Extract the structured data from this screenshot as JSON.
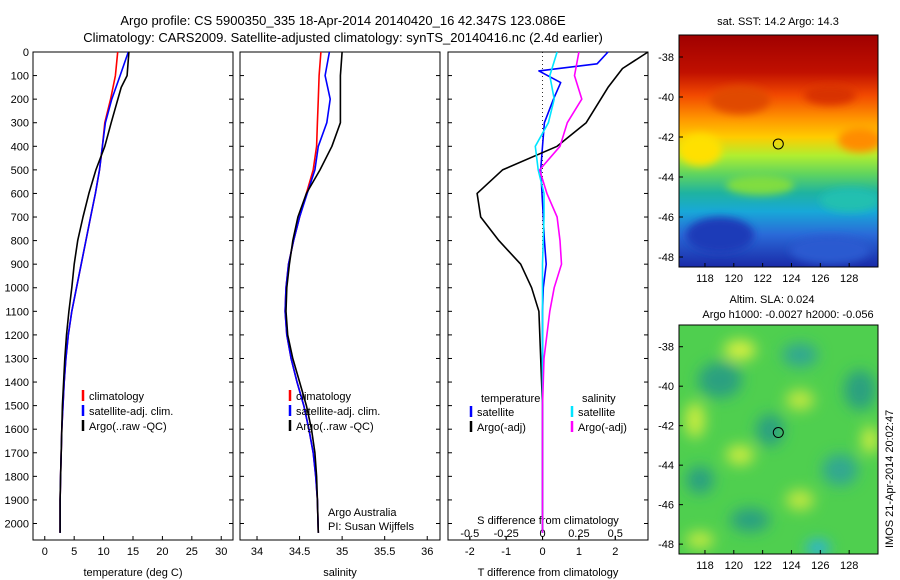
{
  "header": {
    "line1": "Argo profile: CS 5900350_335 18-Apr-2014 20140420_16 42.347S 123.086E",
    "line2": "Climatology: CARS2009. Satellite-adjusted climatology: synTS_20140416.nc (2.4d earlier)"
  },
  "colors": {
    "climatology": "#ff0000",
    "satellite": "#0000ff",
    "argo": "#000000",
    "salinity_satellite": "#00e5ff",
    "salinity_argo": "#ff00ff"
  },
  "credits": {
    "org": "Argo Australia",
    "pi": "PI: Susan Wijffels",
    "stamp": "IMOS 21-Apr-2014 20:02:47"
  },
  "maps": {
    "sst": {
      "title": "sat. SST: 14.2  Argo: 14.3",
      "yticks": [
        "-38",
        "-40",
        "-42",
        "-44",
        "-46",
        "-48"
      ],
      "xticks": [
        "118",
        "120",
        "122",
        "124",
        "126",
        "128"
      ],
      "marker": {
        "lon": 123.086,
        "lat": -42.347
      }
    },
    "sla": {
      "title1": "Altim. SLA: 0.024",
      "title2": "Argo h1000: -0.0027 h2000: -0.056",
      "yticks": [
        "-38",
        "-40",
        "-42",
        "-44",
        "-46",
        "-48"
      ],
      "xticks": [
        "118",
        "120",
        "122",
        "124",
        "126",
        "128"
      ],
      "marker": {
        "lon": 123.086,
        "lat": -42.347
      }
    }
  },
  "chart_data": [
    {
      "type": "line",
      "id": "temperature",
      "xlabel": "temperature (deg C)",
      "ylabel": "",
      "xlim": [
        -2,
        32
      ],
      "ylim": [
        2070,
        0
      ],
      "xticks": [
        0,
        5,
        10,
        15,
        20,
        25,
        30
      ],
      "yticks": [
        0,
        100,
        200,
        300,
        400,
        500,
        600,
        700,
        800,
        900,
        1000,
        1100,
        1200,
        1300,
        1400,
        1500,
        1600,
        1700,
        1800,
        1900,
        2000
      ],
      "legend": [
        "climatology",
        "satellite-adj. clim.",
        "Argo(..raw -QC)"
      ],
      "series": [
        {
          "name": "climatology",
          "color": "#ff0000",
          "x": [
            12.4,
            12.0,
            11.2,
            10.2,
            9.8,
            9.3,
            8.6,
            7.8,
            7.0,
            6.2,
            5.4,
            4.6,
            4.0,
            3.6,
            3.3,
            3.1,
            2.9,
            2.8,
            2.7,
            2.6,
            2.6
          ],
          "y": [
            0,
            100,
            200,
            300,
            400,
            500,
            600,
            700,
            800,
            900,
            1000,
            1100,
            1200,
            1300,
            1400,
            1500,
            1600,
            1700,
            1800,
            1900,
            2040
          ]
        },
        {
          "name": "satellite-adj. clim.",
          "color": "#0000ff",
          "x": [
            14.2,
            12.8,
            11.4,
            10.3,
            9.8,
            9.3,
            8.6,
            7.8,
            7.0,
            6.2,
            5.4,
            4.6,
            4.0,
            3.6,
            3.3,
            3.1,
            2.9,
            2.8,
            2.7,
            2.6,
            2.6
          ],
          "y": [
            0,
            100,
            200,
            300,
            400,
            500,
            600,
            700,
            800,
            900,
            1000,
            1100,
            1200,
            1300,
            1400,
            1500,
            1600,
            1700,
            1800,
            1900,
            2040
          ]
        },
        {
          "name": "Argo(..raw -QC)",
          "color": "#000000",
          "x": [
            14.3,
            14.0,
            13.0,
            11.3,
            10.2,
            8.7,
            7.5,
            6.5,
            5.6,
            5.0,
            4.6,
            4.1,
            3.7,
            3.4,
            3.2,
            3.0,
            2.9,
            2.8,
            2.7,
            2.6,
            2.6
          ],
          "y": [
            0,
            100,
            150,
            300,
            400,
            500,
            600,
            700,
            800,
            900,
            1000,
            1100,
            1200,
            1300,
            1400,
            1500,
            1600,
            1700,
            1800,
            1900,
            2040
          ]
        }
      ]
    },
    {
      "type": "line",
      "id": "salinity",
      "xlabel": "salinity",
      "ylabel": "",
      "xlim": [
        33.8,
        36.15
      ],
      "ylim": [
        2070,
        0
      ],
      "xticks": [
        34,
        34.5,
        35,
        35.5,
        36
      ],
      "legend": [
        "climatology",
        "satellite-adj. clim.",
        "Argo(..raw -QC)"
      ],
      "series": [
        {
          "name": "climatology",
          "color": "#ff0000",
          "x": [
            34.75,
            34.73,
            34.72,
            34.71,
            34.7,
            34.66,
            34.58,
            34.5,
            34.43,
            34.37,
            34.34,
            34.33,
            34.35,
            34.4,
            34.47,
            34.55,
            34.61,
            34.66,
            34.69,
            34.71,
            34.72
          ],
          "y": [
            0,
            100,
            200,
            300,
            400,
            500,
            600,
            700,
            800,
            900,
            1000,
            1100,
            1200,
            1300,
            1400,
            1500,
            1600,
            1700,
            1800,
            1900,
            2040
          ]
        },
        {
          "name": "satellite-adj. clim.",
          "color": "#0000ff",
          "x": [
            34.85,
            34.8,
            34.86,
            34.82,
            34.72,
            34.68,
            34.59,
            34.5,
            34.43,
            34.37,
            34.34,
            34.33,
            34.35,
            34.4,
            34.47,
            34.55,
            34.61,
            34.66,
            34.69,
            34.71,
            34.72
          ],
          "y": [
            0,
            100,
            200,
            300,
            400,
            500,
            600,
            700,
            800,
            900,
            1000,
            1100,
            1200,
            1300,
            1400,
            1500,
            1600,
            1700,
            1800,
            1900,
            2040
          ]
        },
        {
          "name": "Argo(..raw -QC)",
          "color": "#000000",
          "x": [
            35.0,
            34.98,
            34.98,
            34.98,
            34.88,
            34.74,
            34.58,
            34.48,
            34.42,
            34.38,
            34.35,
            34.34,
            34.36,
            34.42,
            34.5,
            34.58,
            34.64,
            34.68,
            34.7,
            34.71,
            34.72
          ],
          "y": [
            0,
            100,
            200,
            300,
            400,
            500,
            600,
            700,
            800,
            900,
            1000,
            1100,
            1200,
            1300,
            1400,
            1500,
            1600,
            1700,
            1800,
            1900,
            2040
          ]
        }
      ]
    },
    {
      "type": "line",
      "id": "differences",
      "xlabel": "T difference from climatology",
      "x2label": "S difference from climatology",
      "ylabel": "",
      "xlim": [
        -2.6,
        2.9
      ],
      "x2lim": [
        -0.65,
        0.725
      ],
      "ylim": [
        2070,
        0
      ],
      "xticks": [
        -2,
        -1,
        0,
        1,
        2
      ],
      "x2ticks": [
        -0.5,
        -0.25,
        0,
        0.25,
        0.5
      ],
      "legend_groups": [
        {
          "title": "temperature",
          "entries": [
            "satellite",
            "Argo(-adj)"
          ]
        },
        {
          "title": "salinity",
          "entries": [
            "satellite",
            "Argo(-adj)"
          ]
        }
      ],
      "series": [
        {
          "name": "satellite",
          "group": "temperature",
          "color": "#0000ff",
          "axis": "T",
          "x": [
            1.8,
            1.5,
            -0.1,
            0.5,
            0.3,
            0.05,
            0.0,
            -0.05,
            0.02,
            0.05,
            0.1,
            0.02,
            0.0,
            0.0,
            0.0,
            0.0,
            0.0,
            0.0,
            0.0,
            0.0,
            0.0
          ],
          "y": [
            0,
            50,
            80,
            130,
            200,
            300,
            400,
            500,
            700,
            800,
            900,
            1000,
            1100,
            1200,
            1400,
            1600,
            1700,
            1800,
            1900,
            2000,
            2040
          ]
        },
        {
          "name": "Argo(-adj)",
          "group": "temperature",
          "color": "#000000",
          "axis": "T",
          "x": [
            2.9,
            2.2,
            1.8,
            1.2,
            0.4,
            -1.1,
            -1.8,
            -1.7,
            -1.2,
            -0.6,
            -0.3,
            -0.1,
            -0.05,
            0.0,
            0.0,
            0.0,
            0.0,
            0.0,
            0.0
          ],
          "y": [
            0,
            70,
            150,
            300,
            400,
            500,
            600,
            700,
            800,
            900,
            1000,
            1100,
            1300,
            1500,
            1600,
            1700,
            1800,
            1900,
            2040
          ]
        },
        {
          "name": "satellite",
          "group": "salinity",
          "color": "#00e5ff",
          "axis": "S",
          "x": [
            0.1,
            0.05,
            0.08,
            0.04,
            -0.05,
            -0.03,
            0.01,
            0.01,
            0.0,
            0.0,
            0.0,
            0.0,
            0.0,
            0.0,
            0.0,
            0.0
          ],
          "y": [
            0,
            100,
            200,
            300,
            400,
            500,
            600,
            700,
            900,
            1100,
            1300,
            1500,
            1700,
            1800,
            1900,
            2040
          ]
        },
        {
          "name": "Argo(-adj)",
          "group": "salinity",
          "color": "#ff00ff",
          "axis": "S",
          "x": [
            0.25,
            0.22,
            0.27,
            0.17,
            0.12,
            -0.02,
            0.03,
            0.1,
            0.12,
            0.13,
            0.08,
            0.05,
            0.03,
            0.01,
            0.0,
            0.0,
            0.0
          ],
          "y": [
            0,
            100,
            200,
            300,
            400,
            500,
            600,
            700,
            800,
            900,
            1000,
            1100,
            1200,
            1300,
            1500,
            1800,
            2040
          ]
        }
      ]
    }
  ]
}
